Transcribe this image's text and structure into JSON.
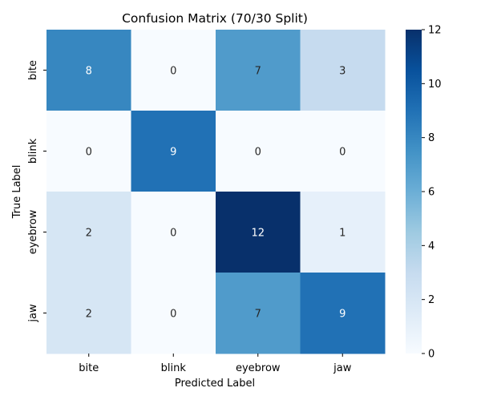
{
  "chart_data": {
    "type": "heatmap",
    "title": "Confusion Matrix (70/30 Split)",
    "xlabel": "Predicted Label",
    "ylabel": "True Label",
    "x_categories": [
      "bite",
      "blink",
      "eyebrow",
      "jaw"
    ],
    "y_categories": [
      "bite",
      "blink",
      "eyebrow",
      "jaw"
    ],
    "values": [
      [
        8,
        0,
        7,
        3
      ],
      [
        0,
        9,
        0,
        0
      ],
      [
        2,
        0,
        12,
        1
      ],
      [
        2,
        0,
        7,
        9
      ]
    ],
    "colormap": "Blues",
    "vmin": 0,
    "vmax": 12,
    "colorbar_ticks": [
      0,
      2,
      4,
      6,
      8,
      10,
      12
    ],
    "annotations": true,
    "grid": false
  }
}
